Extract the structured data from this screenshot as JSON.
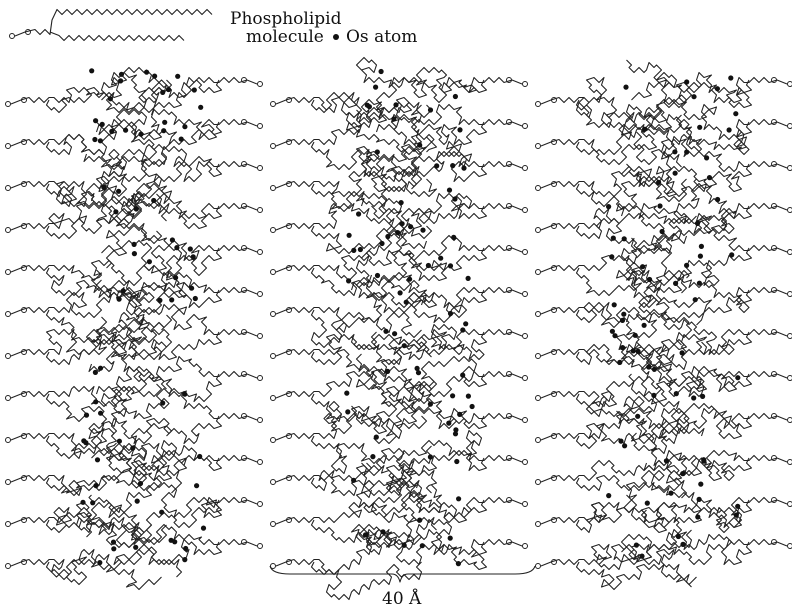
{
  "legend": {
    "molecule_label_lines": [
      "Phospholipid",
      "molecule"
    ],
    "atom_label": "Os atom"
  },
  "scale_bar": {
    "label": "40 Å"
  }
}
